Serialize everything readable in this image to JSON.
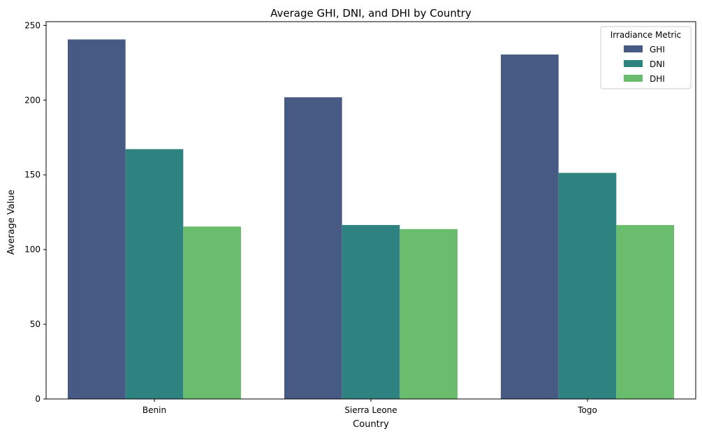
{
  "chart_data": {
    "type": "bar",
    "title": "Average GHI, DNI, and DHI by Country",
    "xlabel": "Country",
    "ylabel": "Average Value",
    "categories": [
      "Benin",
      "Sierra Leone",
      "Togo"
    ],
    "series": [
      {
        "name": "GHI",
        "color": "#465a83",
        "values": [
          240.6,
          201.9,
          230.5
        ]
      },
      {
        "name": "DNI",
        "color": "#2e8380",
        "values": [
          167.2,
          116.4,
          151.3
        ]
      },
      {
        "name": "DHI",
        "color": "#6abd6d",
        "values": [
          115.4,
          113.7,
          116.4
        ]
      }
    ],
    "ylim": [
      0,
      252.5
    ],
    "yticks": [
      0,
      50,
      100,
      150,
      200,
      250
    ],
    "legend": {
      "title": "Irradiance Metric",
      "placement": "top-right"
    },
    "grid": false
  }
}
